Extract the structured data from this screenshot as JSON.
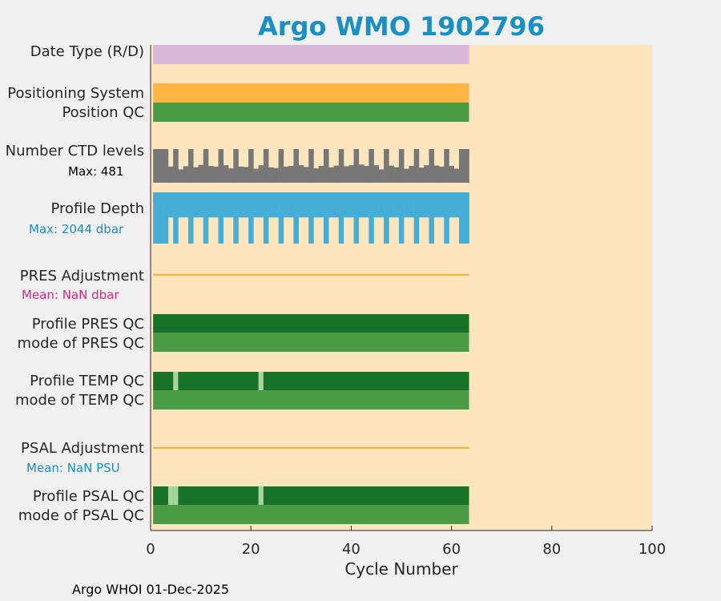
{
  "colors": {
    "background": "#f0f0f0",
    "plot_bg": "#fde6bd",
    "title": "#1a8fc2",
    "date_type": "#d9b8db",
    "positioning": "#fdb644",
    "qc_good": "#4a9a46",
    "qc_dark": "#18722a",
    "qc_light": "#a6d5a0",
    "ctd": "#777777",
    "depth": "#46aed6",
    "adjust_line": "#f8b64a",
    "pres_mean": "#e0257d",
    "depth_max": "#1a8fc2",
    "psal_mean": "#1a8fc2"
  },
  "chart_data": {
    "type": "bar",
    "title": "Argo WMO 1902796",
    "xlabel": "Cycle Number",
    "xlim": [
      0,
      100
    ],
    "xticks": [
      "0",
      "20",
      "40",
      "60",
      "80",
      "100"
    ],
    "rows": {
      "date_type": "Date Type (R/D)",
      "positioning": "Positioning System",
      "position_qc": "Position QC",
      "ctd": "Number CTD levels",
      "depth": "Profile Depth",
      "pres_adj": "PRES Adjustment",
      "pres_qc": "Profile PRES QC",
      "pres_mode": "mode of PRES QC",
      "temp_qc": "Profile TEMP QC",
      "temp_mode": "mode of TEMP QC",
      "psal_adj": "PSAL Adjustment",
      "psal_qc": "Profile PSAL QC",
      "psal_mode": "mode of PSAL QC"
    },
    "annotations": {
      "ctd_max": "Max: 481",
      "depth_max": "Max: 2044 dbar",
      "pres_mean": "Mean:  NaN dbar",
      "psal_mean": "Mean:  NaN PSU"
    },
    "cycle_range": [
      0.5,
      63.5
    ],
    "ctd_max_levels": 481,
    "ctd_high_cycles": [
      1,
      2,
      3,
      5,
      8,
      11,
      14,
      17,
      20,
      23,
      26,
      29,
      32,
      35,
      38,
      41,
      44,
      47,
      50,
      53,
      56,
      59,
      62,
      63
    ],
    "ctd_high_levels": 481,
    "ctd_low_levels": [
      210,
      260,
      240,
      230,
      250,
      190,
      235,
      245,
      220,
      255,
      200,
      240,
      230,
      215,
      250,
      205,
      245,
      230,
      225,
      240,
      200,
      250,
      235,
      220,
      210,
      245,
      230,
      240,
      215,
      250,
      225,
      235,
      205,
      240,
      230,
      220,
      245,
      215,
      235,
      250
    ],
    "depth_max_dbar": 2044,
    "depth_deep_cycles": [
      1,
      2,
      3,
      5,
      8,
      11,
      14,
      17,
      20,
      23,
      26,
      29,
      32,
      35,
      38,
      41,
      44,
      47,
      50,
      53,
      56,
      59,
      62,
      63
    ],
    "depth_shallow_dbar": 1000,
    "temp_qc_flag_cycles": [
      5,
      22
    ],
    "psal_qc_flag_cycles": [
      4,
      5,
      22
    ]
  },
  "footer": "Argo WHOI 01-Dec-2025"
}
